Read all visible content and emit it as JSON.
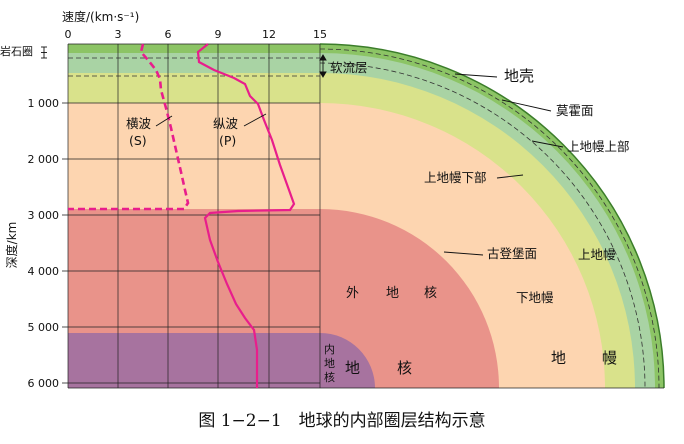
{
  "axes": {
    "velocity": {
      "label": "速度/(km·s⁻¹)",
      "ticks": [
        "0",
        "3",
        "6",
        "9",
        "12",
        "15"
      ]
    },
    "depth": {
      "label": "深度/km",
      "ticks": [
        "1 000",
        "2 000",
        "3 000",
        "4 000",
        "5 000",
        "6 000"
      ]
    }
  },
  "waves": {
    "s": {
      "name": "横波",
      "code": "(S)"
    },
    "p": {
      "name": "纵波",
      "code": "(P)"
    }
  },
  "layers": {
    "lithosphere": "岩石圈",
    "asthenosphere": "软流层",
    "crust": "地壳",
    "moho": "莫霍面",
    "upper_mantle_top": "上地幔上部",
    "upper_mantle_lower": "上地幔下部",
    "gutenberg": "古登堡面",
    "upper_mantle": "上地幔",
    "lower_mantle": "下地幔",
    "mantle_chars": [
      "地",
      "幔"
    ],
    "outer_core_chars": [
      "外",
      "地",
      "核"
    ],
    "inner_core_chars": [
      "内",
      "地",
      "核"
    ],
    "core_chars": [
      "地",
      "核"
    ]
  },
  "colors": {
    "crust": "#8cc465",
    "upper_top": "#a9d3a4",
    "upper_lower": "#d9e28b",
    "lower_mantle": "#fdd5b0",
    "outer_core": "#e9938a",
    "inner_core": "#a7739f",
    "wave": "#e81e8c"
  },
  "caption": "图 1−2−1　地球的内部圈层结构示意"
}
